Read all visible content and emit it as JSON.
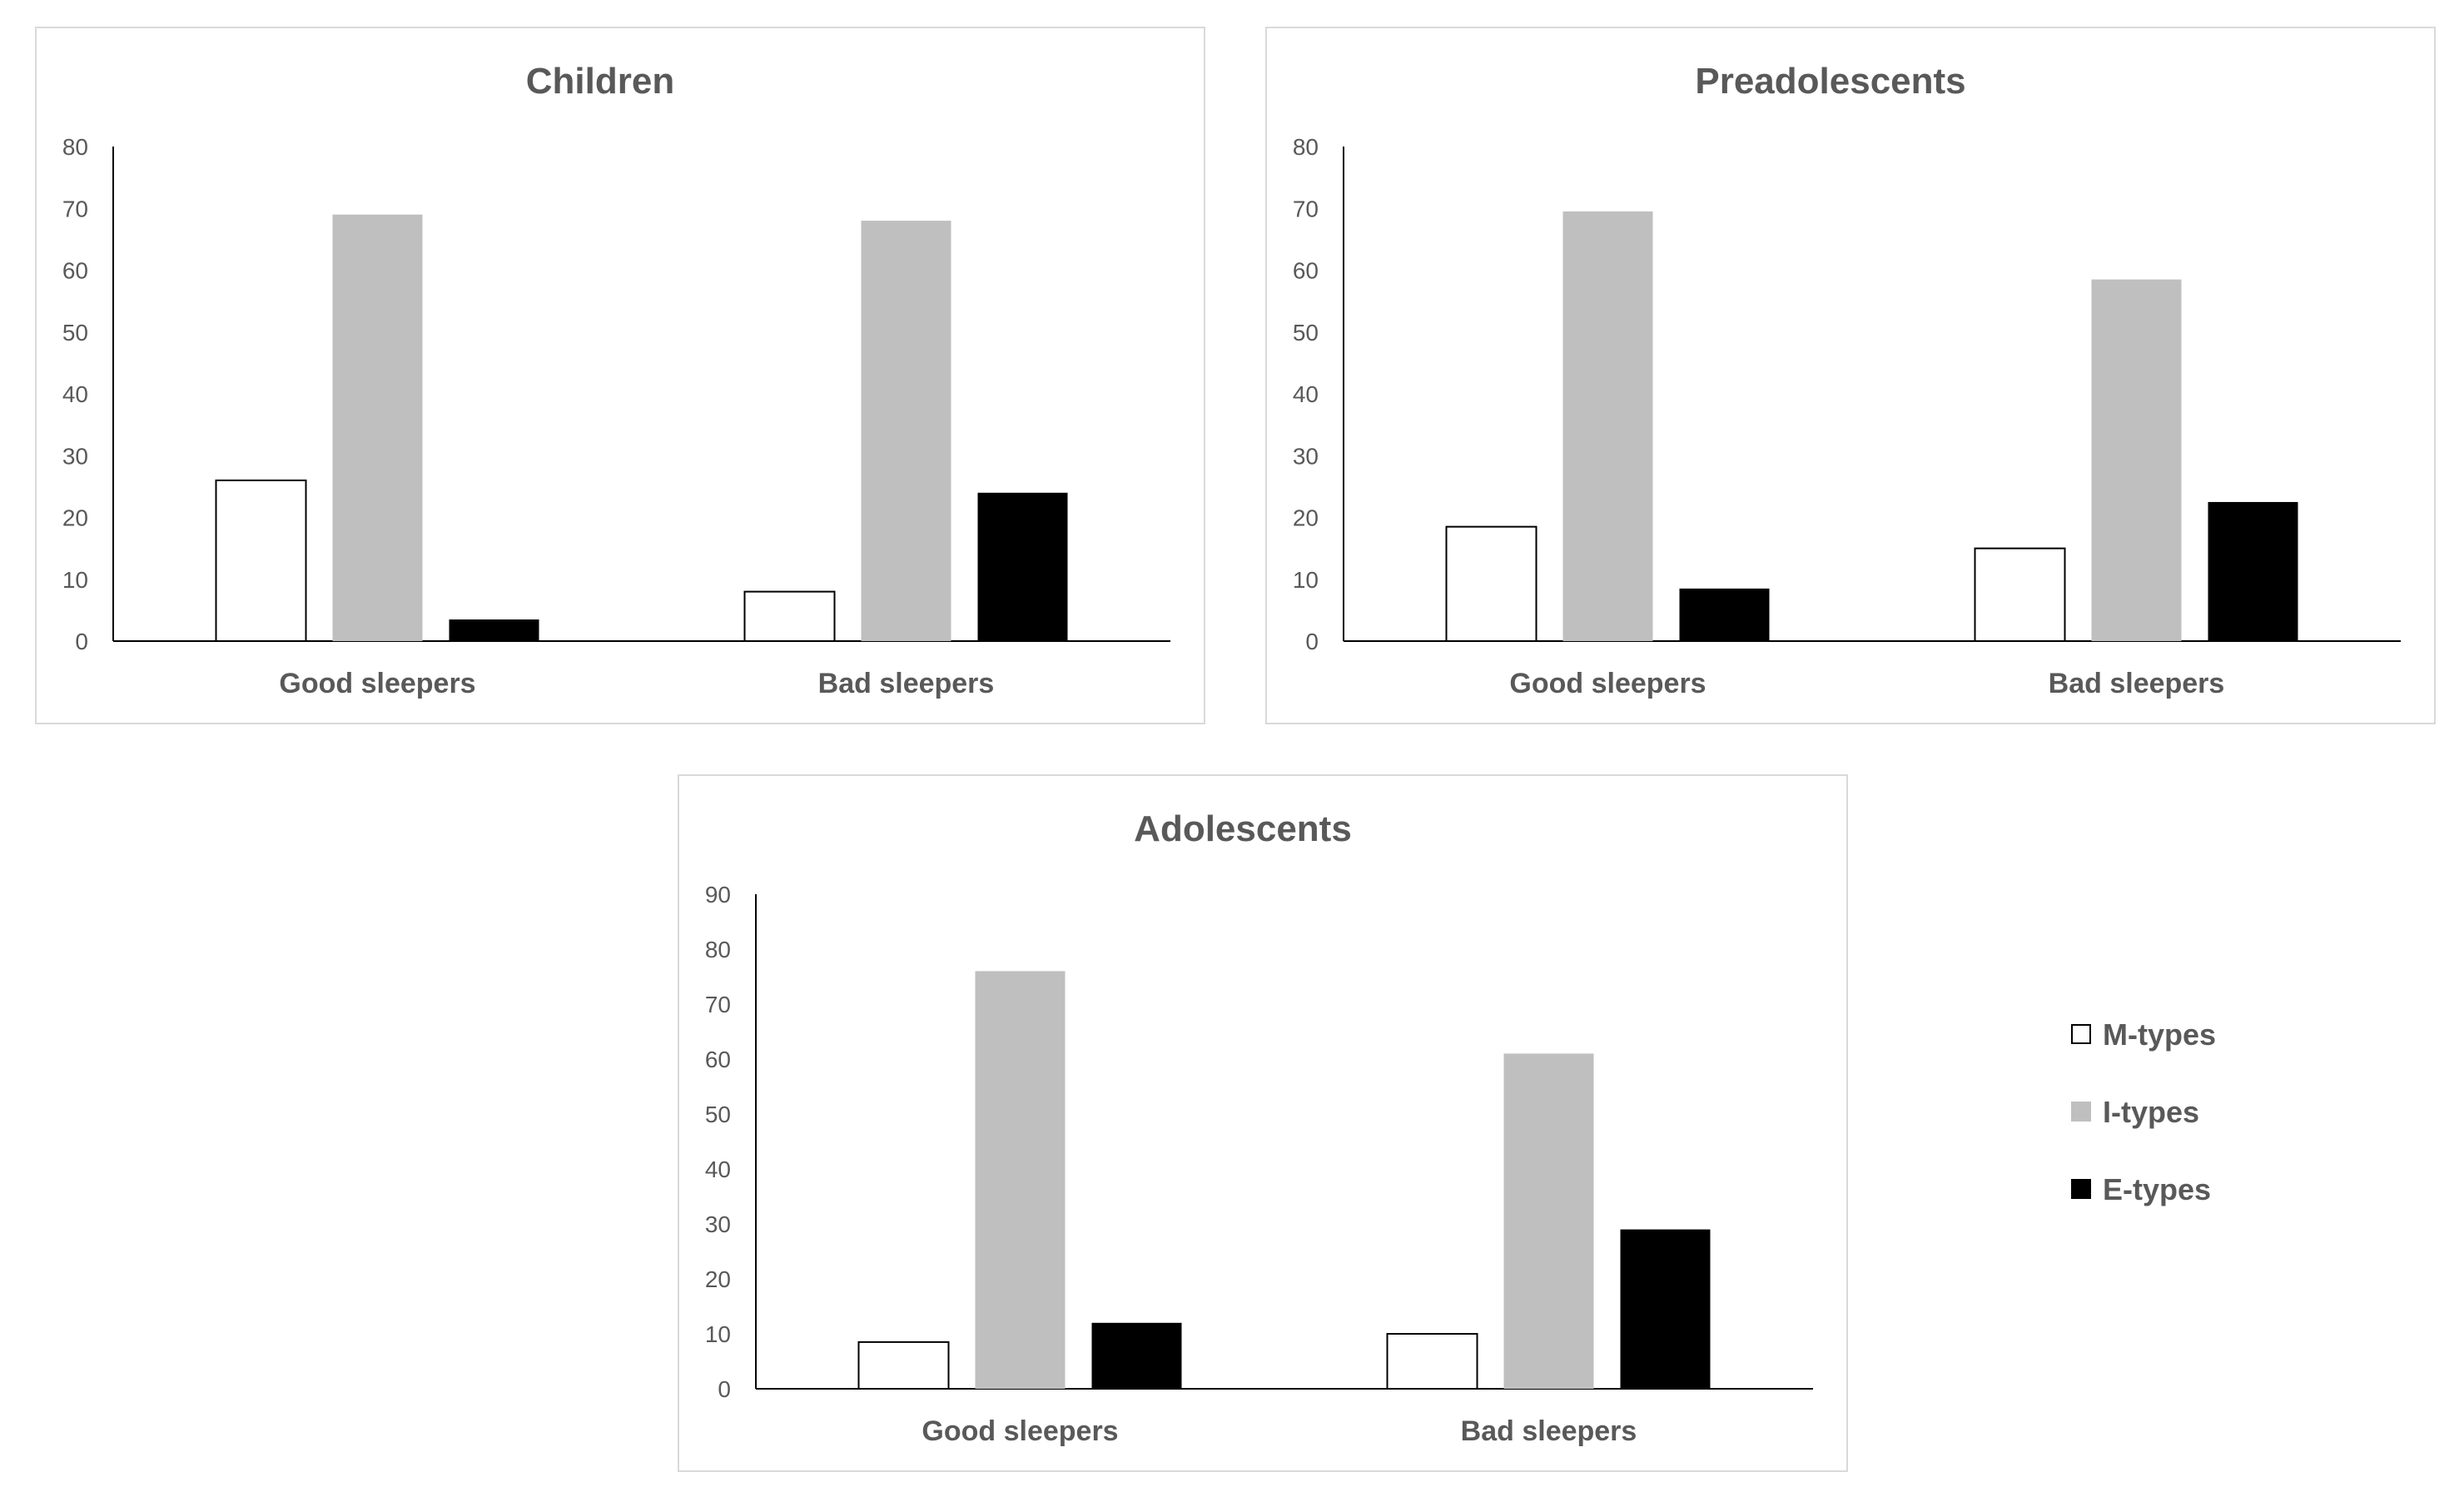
{
  "colors": {
    "m_types": "#ffffff",
    "i_types": "#bfbfbf",
    "e_types": "#000000",
    "outline": "#000000",
    "text": "#595959",
    "frame": "#d9d9d9"
  },
  "chart_data": [
    {
      "type": "bar",
      "title": "Children",
      "categories": [
        "Good sleepers",
        "Bad sleepers"
      ],
      "series": [
        {
          "name": "M-types",
          "values": [
            26,
            8
          ]
        },
        {
          "name": "I-types",
          "values": [
            69,
            68
          ]
        },
        {
          "name": "E-types",
          "values": [
            3.5,
            24
          ]
        }
      ],
      "xlabel": "",
      "ylabel": "",
      "ylim": [
        0,
        80
      ],
      "yticks": [
        "0",
        "10",
        "20",
        "30",
        "40",
        "50",
        "60",
        "70",
        "80"
      ],
      "grid": false
    },
    {
      "type": "bar",
      "title": "Preadolescents",
      "categories": [
        "Good sleepers",
        "Bad sleepers"
      ],
      "series": [
        {
          "name": "M-types",
          "values": [
            18.5,
            15
          ]
        },
        {
          "name": "I-types",
          "values": [
            69.5,
            58.5
          ]
        },
        {
          "name": "E-types",
          "values": [
            8.5,
            22.5
          ]
        }
      ],
      "xlabel": "",
      "ylabel": "",
      "ylim": [
        0,
        80
      ],
      "yticks": [
        "0",
        "10",
        "20",
        "30",
        "40",
        "50",
        "60",
        "70",
        "80"
      ],
      "grid": false
    },
    {
      "type": "bar",
      "title": "Adolescents",
      "categories": [
        "Good sleepers",
        "Bad sleepers"
      ],
      "series": [
        {
          "name": "M-types",
          "values": [
            8.5,
            10
          ]
        },
        {
          "name": "I-types",
          "values": [
            76,
            61
          ]
        },
        {
          "name": "E-types",
          "values": [
            12,
            29
          ]
        }
      ],
      "xlabel": "",
      "ylabel": "",
      "ylim": [
        0,
        90
      ],
      "yticks": [
        "0",
        "10",
        "20",
        "30",
        "40",
        "50",
        "60",
        "70",
        "80",
        "90"
      ],
      "grid": false
    }
  ],
  "legend": {
    "placement": "right",
    "items": [
      {
        "label": "M-types",
        "color": "#ffffff"
      },
      {
        "label": "I-types",
        "color": "#bfbfbf"
      },
      {
        "label": "E-types",
        "color": "#000000"
      }
    ]
  }
}
